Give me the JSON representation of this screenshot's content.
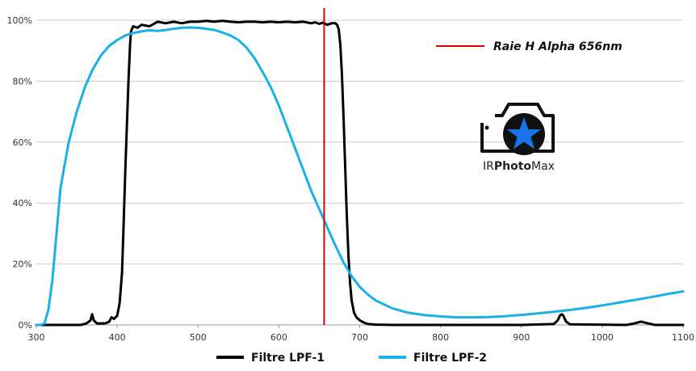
{
  "chart_data": {
    "type": "line",
    "xlim": [
      300,
      1100
    ],
    "ylim": [
      0,
      100
    ],
    "x_ticks": [
      "300",
      "400",
      "500",
      "600",
      "700",
      "800",
      "900",
      "1000",
      "1100"
    ],
    "y_ticks": [
      "0%",
      "20%",
      "40%",
      "60%",
      "80%",
      "100%"
    ],
    "grid": "horizontal",
    "legend_position": "bottom",
    "colors": {
      "lpf1": "#000000",
      "lpf2": "#1ab0e8",
      "halpha": "#e00000",
      "grid": "#cccccc"
    },
    "series": [
      {
        "name": "Filtre LPF-1",
        "color": "#000000",
        "x": [
          300,
          355,
          362,
          367,
          369,
          371,
          375,
          380,
          385,
          390,
          393,
          396,
          400,
          403,
          406,
          408,
          410,
          412,
          414,
          416,
          417,
          418,
          420,
          425,
          430,
          440,
          450,
          460,
          470,
          480,
          490,
          500,
          510,
          520,
          530,
          540,
          550,
          560,
          570,
          580,
          590,
          600,
          610,
          620,
          630,
          640,
          645,
          650,
          655,
          660,
          665,
          670,
          672,
          674,
          676,
          678,
          680,
          682,
          684,
          686,
          688,
          690,
          693,
          696,
          700,
          705,
          710,
          720,
          740,
          800,
          900,
          940,
          945,
          948,
          950,
          952,
          955,
          960,
          1030,
          1040,
          1048,
          1055,
          1065,
          1100
        ],
        "y": [
          0,
          0,
          0.5,
          1.5,
          3.5,
          1.5,
          0.5,
          0.5,
          0.5,
          1,
          2.5,
          2,
          3,
          7,
          17,
          33,
          50,
          65,
          80,
          92,
          96,
          97,
          98,
          97.5,
          98.5,
          98,
          99.5,
          99,
          99.5,
          99,
          99.5,
          99.5,
          99.8,
          99.5,
          99.8,
          99.5,
          99.3,
          99.5,
          99.5,
          99.3,
          99.5,
          99.3,
          99.5,
          99.3,
          99.5,
          99,
          99.3,
          98.8,
          99.2,
          98.5,
          99,
          99,
          98.5,
          97,
          92,
          82,
          68,
          52,
          36,
          23,
          14,
          8,
          4,
          2.5,
          1.5,
          0.8,
          0.3,
          0.1,
          0,
          0,
          0,
          0.3,
          1.5,
          3.2,
          3.5,
          3,
          1.2,
          0.2,
          0,
          0.5,
          1.1,
          0.6,
          0,
          0
        ]
      },
      {
        "name": "Filtre LPF-2",
        "color": "#1ab0e8",
        "x": [
          300,
          305,
          310,
          315,
          320,
          325,
          330,
          340,
          350,
          360,
          370,
          380,
          390,
          400,
          410,
          420,
          430,
          440,
          450,
          460,
          470,
          480,
          490,
          500,
          510,
          520,
          530,
          540,
          550,
          560,
          570,
          580,
          590,
          600,
          610,
          620,
          630,
          640,
          650,
          656,
          660,
          670,
          680,
          690,
          700,
          710,
          720,
          740,
          760,
          780,
          800,
          820,
          840,
          860,
          880,
          900,
          920,
          940,
          960,
          980,
          1000,
          1020,
          1040,
          1060,
          1080,
          1100
        ],
        "y": [
          0,
          0,
          0.5,
          5,
          15,
          30,
          45,
          60,
          70,
          78,
          84,
          88.5,
          91.5,
          93.5,
          95,
          95.8,
          96.3,
          96.7,
          96.5,
          96.8,
          97.2,
          97.5,
          97.6,
          97.5,
          97.2,
          96.8,
          96,
          95,
          93.5,
          91,
          87.5,
          83,
          78,
          72,
          65,
          58,
          51,
          44,
          38,
          34.5,
          32,
          26,
          20.5,
          16,
          12.5,
          10,
          8,
          5.5,
          4,
          3.2,
          2.8,
          2.5,
          2.5,
          2.6,
          2.9,
          3.3,
          3.8,
          4.3,
          4.9,
          5.6,
          6.4,
          7.3,
          8.2,
          9.1,
          10.1,
          11
        ]
      }
    ],
    "vertical_lines": [
      {
        "name": "Raie H Alpha 656nm",
        "x": 656,
        "color": "#e00000"
      }
    ],
    "annotation": {
      "text": "Raie H Alpha 656nm"
    },
    "logo": {
      "text_light_1": "IR",
      "text_bold": "Photo",
      "text_light_2": "Max"
    }
  }
}
